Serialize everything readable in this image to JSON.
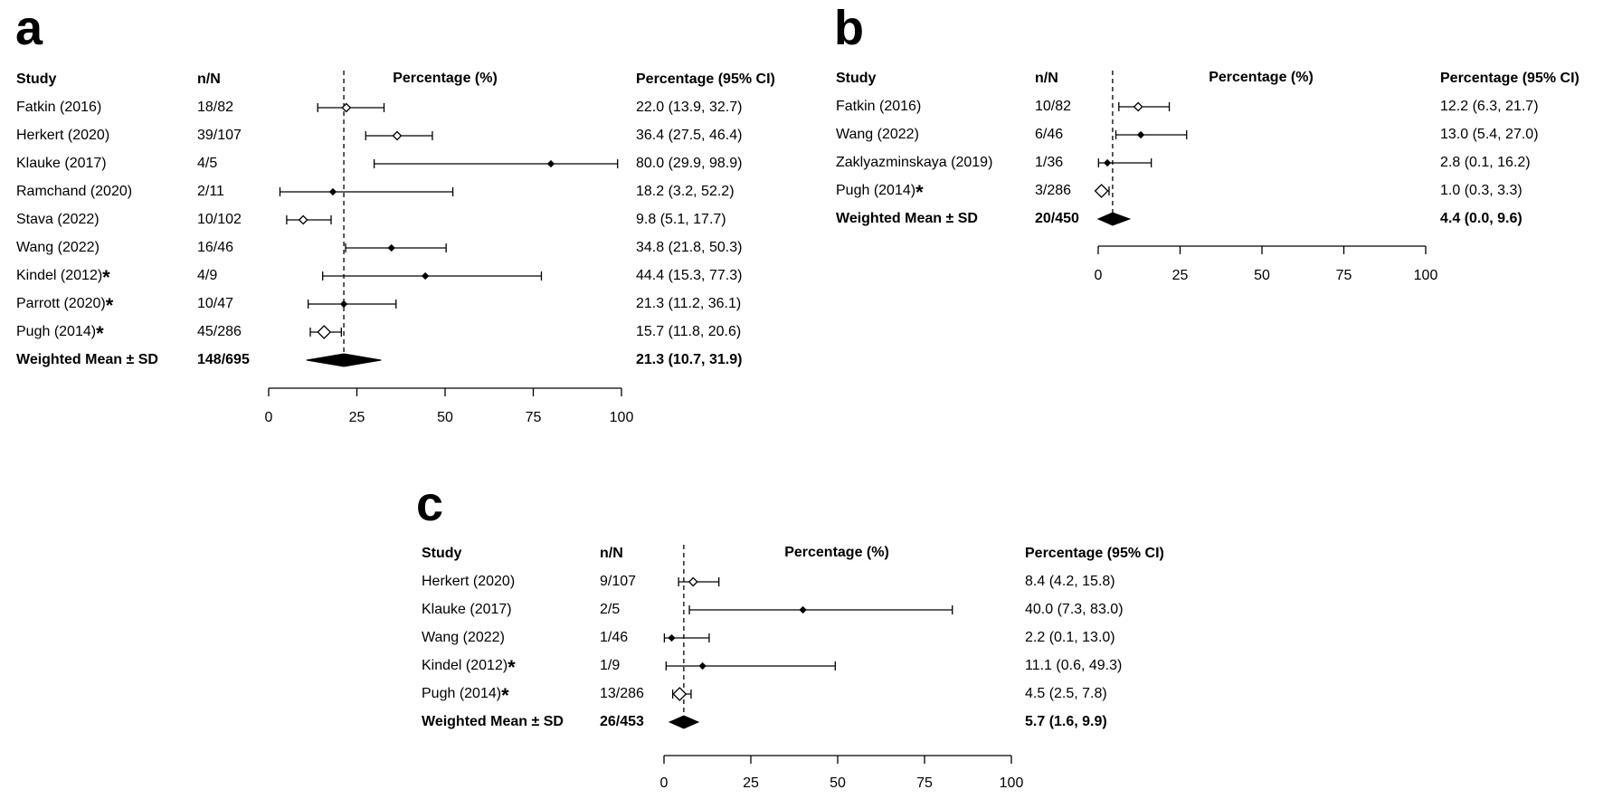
{
  "chart_data": [
    {
      "panel": "a",
      "type": "forest",
      "headers": {
        "study": "Study",
        "nN": "n/N",
        "plot": "Percentage (%)",
        "ci": "Percentage (95% CI)"
      },
      "x_ticks": [
        "0",
        "25",
        "50",
        "75",
        "100"
      ],
      "xlim": [
        0,
        100
      ],
      "reference_line": 21.3,
      "rows": [
        {
          "study": "Fatkin (2016)",
          "nN": "18/82",
          "ci": "22.0 (13.9, 32.7)",
          "est": 22.0,
          "lo": 13.9,
          "hi": 32.7,
          "marker": "diamond-open",
          "star": false
        },
        {
          "study": "Herkert (2020)",
          "nN": "39/107",
          "ci": "36.4 (27.5, 46.4)",
          "est": 36.4,
          "lo": 27.5,
          "hi": 46.4,
          "marker": "diamond-open",
          "star": false
        },
        {
          "study": "Klauke (2017)",
          "nN": "4/5",
          "ci": "80.0 (29.9, 98.9)",
          "est": 80.0,
          "lo": 29.9,
          "hi": 98.9,
          "marker": "dot",
          "star": false
        },
        {
          "study": "Ramchand (2020)",
          "nN": "2/11",
          "ci": "18.2 (3.2, 52.2)",
          "est": 18.2,
          "lo": 3.2,
          "hi": 52.2,
          "marker": "dot",
          "star": false
        },
        {
          "study": "Stava (2022)",
          "nN": "10/102",
          "ci": "9.8 (5.1, 17.7)",
          "est": 9.8,
          "lo": 5.1,
          "hi": 17.7,
          "marker": "diamond-open",
          "star": false
        },
        {
          "study": "Wang (2022)",
          "nN": "16/46",
          "ci": "34.8 (21.8, 50.3)",
          "est": 34.8,
          "lo": 21.8,
          "hi": 50.3,
          "marker": "dot",
          "star": false
        },
        {
          "study": "Kindel (2012)",
          "nN": "4/9",
          "ci": "44.4 (15.3, 77.3)",
          "est": 44.4,
          "lo": 15.3,
          "hi": 77.3,
          "marker": "dot",
          "star": true
        },
        {
          "study": "Parrott (2020)",
          "nN": "10/47",
          "ci": "21.3 (11.2, 36.1)",
          "est": 21.3,
          "lo": 11.2,
          "hi": 36.1,
          "marker": "dot",
          "star": true
        },
        {
          "study": "Pugh (2014)",
          "nN": "45/286",
          "ci": "15.7 (11.8, 20.6)",
          "est": 15.7,
          "lo": 11.8,
          "hi": 20.6,
          "marker": "diamond-open-large",
          "star": true
        }
      ],
      "summary": {
        "study": "Weighted Mean ± SD",
        "nN": "148/695",
        "ci": "21.3 (10.7, 31.9)",
        "est": 21.3,
        "lo": 10.7,
        "hi": 31.9
      }
    },
    {
      "panel": "b",
      "type": "forest",
      "headers": {
        "study": "Study",
        "nN": "n/N",
        "plot": "Percentage (%)",
        "ci": "Percentage (95% CI)"
      },
      "x_ticks": [
        "0",
        "25",
        "50",
        "75",
        "100"
      ],
      "xlim": [
        0,
        100
      ],
      "reference_line": 4.4,
      "rows": [
        {
          "study": "Fatkin (2016)",
          "nN": "10/82",
          "ci": "12.2 (6.3, 21.7)",
          "est": 12.2,
          "lo": 6.3,
          "hi": 21.7,
          "marker": "diamond-open",
          "star": false
        },
        {
          "study": "Wang (2022)",
          "nN": "6/46",
          "ci": "13.0 (5.4, 27.0)",
          "est": 13.0,
          "lo": 5.4,
          "hi": 27.0,
          "marker": "dot",
          "star": false
        },
        {
          "study": "Zaklyazminskaya (2019)",
          "nN": "1/36",
          "ci": "2.8 (0.1, 16.2)",
          "est": 2.8,
          "lo": 0.1,
          "hi": 16.2,
          "marker": "dot",
          "star": false
        },
        {
          "study": "Pugh (2014)",
          "nN": "3/286",
          "ci": "1.0 (0.3, 3.3)",
          "est": 1.0,
          "lo": 0.3,
          "hi": 3.3,
          "marker": "diamond-open-large",
          "star": true
        }
      ],
      "summary": {
        "study": "Weighted Mean ± SD",
        "nN": "20/450",
        "ci": "4.4 (0.0, 9.6)",
        "est": 4.4,
        "lo": 0.0,
        "hi": 9.6
      }
    },
    {
      "panel": "c",
      "type": "forest",
      "headers": {
        "study": "Study",
        "nN": "n/N",
        "plot": "Percentage (%)",
        "ci": "Percentage (95% CI)"
      },
      "x_ticks": [
        "0",
        "25",
        "50",
        "75",
        "100"
      ],
      "xlim": [
        0,
        100
      ],
      "reference_line": 5.7,
      "rows": [
        {
          "study": "Herkert (2020)",
          "nN": "9/107",
          "ci": "8.4 (4.2, 15.8)",
          "est": 8.4,
          "lo": 4.2,
          "hi": 15.8,
          "marker": "diamond-open",
          "star": false
        },
        {
          "study": "Klauke (2017)",
          "nN": "2/5",
          "ci": "40.0 (7.3, 83.0)",
          "est": 40.0,
          "lo": 7.3,
          "hi": 83.0,
          "marker": "dot",
          "star": false
        },
        {
          "study": "Wang (2022)",
          "nN": "1/46",
          "ci": "2.2 (0.1, 13.0)",
          "est": 2.2,
          "lo": 0.1,
          "hi": 13.0,
          "marker": "dot",
          "star": false
        },
        {
          "study": "Kindel (2012)",
          "nN": "1/9",
          "ci": "11.1 (0.6, 49.3)",
          "est": 11.1,
          "lo": 0.6,
          "hi": 49.3,
          "marker": "dot",
          "star": true
        },
        {
          "study": "Pugh (2014)",
          "nN": "13/286",
          "ci": "4.5 (2.5, 7.8)",
          "est": 4.5,
          "lo": 2.5,
          "hi": 7.8,
          "marker": "diamond-open-large",
          "star": true
        }
      ],
      "summary": {
        "study": "Weighted Mean ± SD",
        "nN": "26/453",
        "ci": "5.7 (1.6, 9.9)",
        "est": 5.7,
        "lo": 1.6,
        "hi": 9.9
      }
    }
  ],
  "panel_labels": [
    "a",
    "b",
    "c"
  ],
  "star_glyph": "*"
}
